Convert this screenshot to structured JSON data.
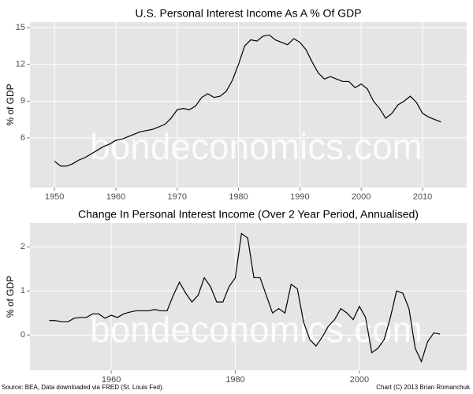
{
  "chart_data": [
    {
      "type": "line",
      "title": "U.S. Personal Interest Income As A % Of GDP",
      "ylabel": "% of GDP",
      "watermark": "bondeconomics.com",
      "x": [
        1950,
        1951,
        1952,
        1953,
        1954,
        1955,
        1956,
        1957,
        1958,
        1959,
        1960,
        1961,
        1962,
        1963,
        1964,
        1965,
        1966,
        1967,
        1968,
        1969,
        1970,
        1971,
        1972,
        1973,
        1974,
        1975,
        1976,
        1977,
        1978,
        1979,
        1980,
        1981,
        1982,
        1983,
        1984,
        1985,
        1986,
        1987,
        1988,
        1989,
        1990,
        1991,
        1992,
        1993,
        1994,
        1995,
        1996,
        1997,
        1998,
        1999,
        2000,
        2001,
        2002,
        2003,
        2004,
        2005,
        2006,
        2007,
        2008,
        2009,
        2010,
        2011,
        2012,
        2013
      ],
      "series": [
        {
          "color": "#000000",
          "values": [
            4.1,
            3.7,
            3.7,
            3.9,
            4.2,
            4.4,
            4.7,
            5.0,
            5.3,
            5.5,
            5.8,
            5.9,
            6.1,
            6.3,
            6.5,
            6.6,
            6.7,
            6.9,
            7.1,
            7.6,
            8.3,
            8.4,
            8.3,
            8.6,
            9.3,
            9.6,
            9.3,
            9.4,
            9.8,
            10.7,
            12.0,
            13.5,
            14.0,
            13.9,
            14.3,
            14.4,
            14.0,
            13.8,
            13.6,
            14.1,
            13.8,
            13.2,
            12.2,
            11.3,
            10.8,
            11.0,
            10.8,
            10.6,
            10.6,
            10.1,
            10.4,
            10.0,
            9.0,
            8.4,
            7.6,
            8.0,
            8.7,
            9.0,
            9.4,
            8.9,
            8.0,
            7.7,
            7.5,
            7.3
          ]
        }
      ],
      "xlim": [
        1946,
        2017.2
      ],
      "xticks": [
        1950,
        1960,
        1970,
        1980,
        1990,
        2000,
        2010
      ],
      "ylim": [
        1.95,
        15.45
      ],
      "yticks": [
        6,
        9,
        12,
        15
      ],
      "grid": true
    },
    {
      "type": "line",
      "title": "Change In Personal Interest Income (Over 2 Year Period, Annualised)",
      "ylabel": "% of GDP",
      "watermark": "bondeconomics.com",
      "x": [
        1950,
        1951,
        1952,
        1953,
        1954,
        1955,
        1956,
        1957,
        1958,
        1959,
        1960,
        1961,
        1962,
        1963,
        1964,
        1965,
        1966,
        1967,
        1968,
        1969,
        1970,
        1971,
        1972,
        1973,
        1974,
        1975,
        1976,
        1977,
        1978,
        1979,
        1980,
        1981,
        1982,
        1983,
        1984,
        1985,
        1986,
        1987,
        1988,
        1989,
        1990,
        1991,
        1992,
        1993,
        1994,
        1995,
        1996,
        1997,
        1998,
        1999,
        2000,
        2001,
        2002,
        2003,
        2004,
        2005,
        2006,
        2007,
        2008,
        2009,
        2010,
        2011,
        2012,
        2013
      ],
      "series": [
        {
          "color": "#000000",
          "values": [
            0.33,
            0.33,
            0.3,
            0.3,
            0.38,
            0.4,
            0.4,
            0.48,
            0.48,
            0.38,
            0.45,
            0.4,
            0.48,
            0.52,
            0.55,
            0.55,
            0.55,
            0.58,
            0.55,
            0.55,
            0.9,
            1.2,
            0.95,
            0.75,
            0.9,
            1.3,
            1.1,
            0.75,
            0.75,
            1.1,
            1.3,
            2.3,
            2.2,
            1.3,
            1.3,
            0.9,
            0.5,
            0.6,
            0.5,
            1.15,
            1.05,
            0.3,
            -0.1,
            -0.25,
            -0.05,
            0.2,
            0.35,
            0.6,
            0.5,
            0.35,
            0.65,
            0.4,
            -0.4,
            -0.3,
            -0.1,
            0.4,
            1.0,
            0.95,
            0.6,
            -0.3,
            -0.6,
            -0.15,
            0.05,
            0.02
          ]
        }
      ],
      "xlim": [
        1946.9,
        2017.3
      ],
      "xticks": [
        1960,
        1980,
        2000
      ],
      "ylim": [
        -0.8,
        2.54
      ],
      "yticks": [
        0,
        1,
        2
      ],
      "grid": true
    }
  ],
  "source": "Source: BEA, Data downloaded via FRED (St. Louis Fed).",
  "credit": "Chart (C) 2013 Brian Romanchuk"
}
